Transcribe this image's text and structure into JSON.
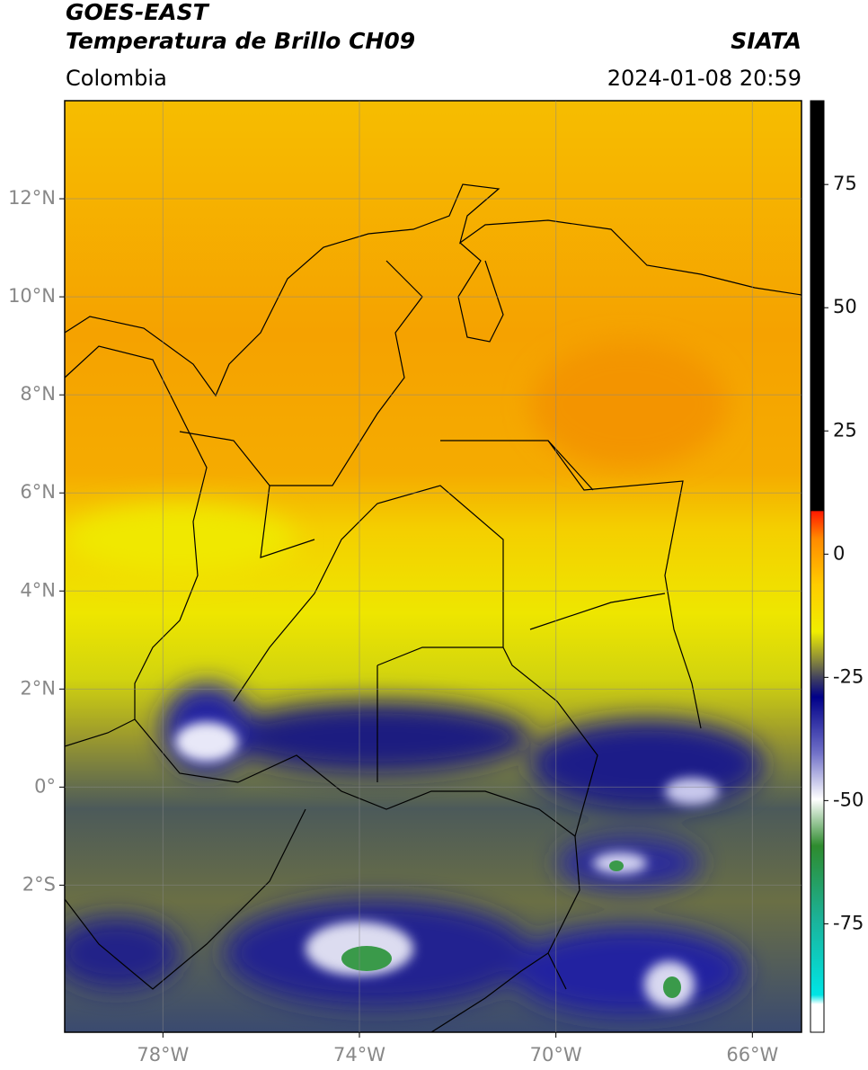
{
  "map": {
    "title": "GOES-EAST",
    "subtitle": "Temperatura de Brillo CH09",
    "source": "SIATA",
    "region": "Colombia",
    "datetime": "2024-01-08 20:59",
    "xlim": [
      -80,
      -65
    ],
    "ylim": [
      -5,
      14
    ],
    "xticks": [
      {
        "value": -78,
        "label": "78°W"
      },
      {
        "value": -74,
        "label": "74°W"
      },
      {
        "value": -70,
        "label": "70°W"
      },
      {
        "value": -66,
        "label": "66°W"
      }
    ],
    "yticks": [
      {
        "value": 12,
        "label": "12°N"
      },
      {
        "value": 10,
        "label": "10°N"
      },
      {
        "value": 8,
        "label": "8°N"
      },
      {
        "value": 6,
        "label": "6°N"
      },
      {
        "value": 4,
        "label": "4°N"
      },
      {
        "value": 2,
        "label": "2°N"
      },
      {
        "value": 0,
        "label": "0°"
      },
      {
        "value": -2,
        "label": "2°S"
      }
    ],
    "grid": true,
    "colorbar": {
      "lim": [
        -97,
        92
      ],
      "ticks": [
        75,
        50,
        25,
        0,
        -25,
        -50,
        -75
      ]
    }
  }
}
